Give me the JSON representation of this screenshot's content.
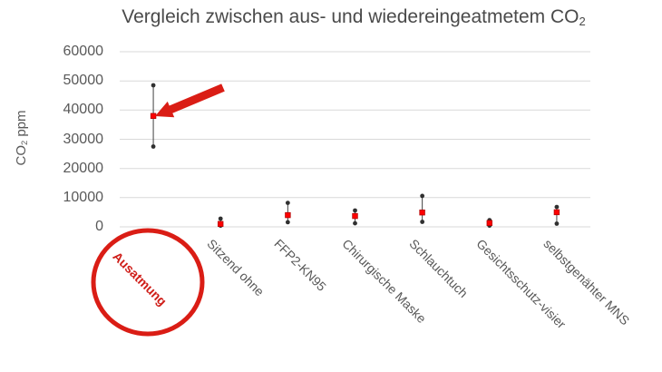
{
  "title": {
    "text": "Vergleich zwischen aus- und wiedereingeatmetem CO",
    "sub": "2"
  },
  "y_axis_title": {
    "pre": "CO",
    "sub": "2",
    "post": " ppm"
  },
  "chart_data": {
    "type": "scatter",
    "title": "Vergleich zwischen aus- und wiedereingeatmetem CO2",
    "ylabel": "CO2 ppm",
    "xlabel": "",
    "ylim": [
      0,
      60000
    ],
    "yticks": [
      0,
      10000,
      20000,
      30000,
      40000,
      50000,
      60000
    ],
    "grid": true,
    "legend": "none",
    "categories": [
      "Ausatmung",
      "Sitzend ohne",
      "FFP2-KN95",
      "Chirurgische Maske",
      "Schlauchtuch",
      "Gesichtsschutz-visier",
      "selbstgenähter MNS"
    ],
    "series": [
      {
        "name": "max",
        "marker": "dot",
        "values": [
          48500,
          2800,
          8200,
          5600,
          10600,
          2300,
          6800
        ]
      },
      {
        "name": "mean",
        "marker": "square",
        "values": [
          38000,
          1000,
          4000,
          3700,
          4900,
          1300,
          5000
        ]
      },
      {
        "name": "min",
        "marker": "dot",
        "values": [
          27500,
          400,
          1600,
          1200,
          1700,
          400,
          1100
        ]
      }
    ]
  },
  "annotations": {
    "arrow": {
      "points_at_category": "Ausatmung",
      "points_at_series": "mean"
    },
    "circle": {
      "around_category": "Ausatmung"
    },
    "highlighted_category": "Ausatmung"
  },
  "colors": {
    "marker_red": "#ff0000",
    "marker_red_border": "#b30000",
    "marker_black": "#303030",
    "range_line": "#404040",
    "gridline": "#d9d9d9",
    "axis_text": "#595959",
    "title_text": "#4a4a4a",
    "annotation_red": "#da1d15",
    "highlight_label_red": "#cf1d18"
  }
}
